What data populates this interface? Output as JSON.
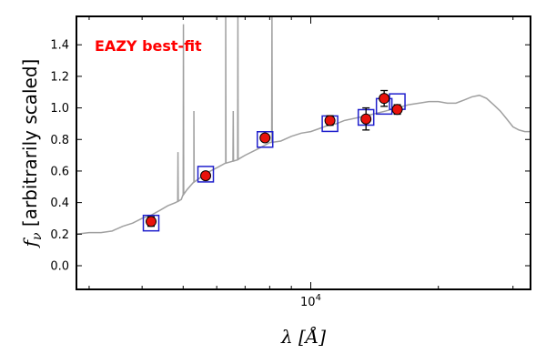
{
  "chart_data": {
    "type": "line",
    "ylabel": "f_ν [arbitrarily scaled]",
    "ylabel_symbol": "f",
    "ylabel_sub": "ν",
    "ylabel_text": " [arbitrarily scaled]",
    "xlabel": "λ [Å]",
    "xlabel_symbol": "λ",
    "xlabel_text": " [Å]",
    "xscale": "log",
    "xlim": [
      2800,
      33000
    ],
    "ylim": [
      -0.15,
      1.58
    ],
    "grid": false,
    "yticks": [
      {
        "value": 0.0,
        "label": "0.0"
      },
      {
        "value": 0.2,
        "label": "0.2"
      },
      {
        "value": 0.4,
        "label": "0.4"
      },
      {
        "value": 0.6,
        "label": "0.6"
      },
      {
        "value": 0.8,
        "label": "0.8"
      },
      {
        "value": 1.0,
        "label": "1.0"
      },
      {
        "value": 1.2,
        "label": "1.2"
      },
      {
        "value": 1.4,
        "label": "1.4"
      }
    ],
    "xtick_major": {
      "value": 10000,
      "label_base": "10",
      "label_exp": "4"
    },
    "annotation": {
      "text": "EAZY best-fit",
      "color": "#ff0000"
    },
    "colors": {
      "model": "#a0a0a0",
      "model_photometry": "#1f1fcc",
      "observed": "#e8120c",
      "errorbar": "#000000"
    },
    "series": [
      {
        "kind": "model-sed",
        "x": [
          2800,
          3000,
          3200,
          3400,
          3600,
          3800,
          4000,
          4200,
          4400,
          4600,
          4800,
          4950,
          5000,
          5100,
          5300,
          5500,
          5800,
          6000,
          6300,
          6500,
          6700,
          6800,
          7000,
          7500,
          8000,
          8500,
          9000,
          9500,
          10000,
          10500,
          11000,
          11500,
          12000,
          13000,
          14000,
          15000,
          16000,
          17000,
          18000,
          19000,
          20000,
          21000,
          22000,
          23000,
          24000,
          25000,
          26000,
          27000,
          28000,
          29000,
          30000,
          31000,
          32000,
          33000
        ],
        "y": [
          0.2,
          0.21,
          0.21,
          0.22,
          0.25,
          0.27,
          0.3,
          0.32,
          0.35,
          0.38,
          0.4,
          0.42,
          0.45,
          0.48,
          0.53,
          0.56,
          0.6,
          0.62,
          0.65,
          0.66,
          0.67,
          0.68,
          0.7,
          0.74,
          0.78,
          0.79,
          0.82,
          0.84,
          0.85,
          0.87,
          0.89,
          0.9,
          0.92,
          0.94,
          0.96,
          0.98,
          1.0,
          1.02,
          1.03,
          1.04,
          1.04,
          1.03,
          1.03,
          1.05,
          1.07,
          1.08,
          1.06,
          1.02,
          0.98,
          0.93,
          0.88,
          0.86,
          0.85,
          0.85
        ],
        "emission_lines": [
          {
            "x": 4861,
            "peak": 0.72
          },
          {
            "x": 5007,
            "peak": 1.53
          },
          {
            "x": 5300,
            "peak": 0.98
          },
          {
            "x": 6300,
            "peak": 1.58
          },
          {
            "x": 6563,
            "peak": 0.98
          },
          {
            "x": 6731,
            "peak": 1.58
          },
          {
            "x": 8100,
            "peak": 1.58
          }
        ]
      },
      {
        "kind": "model-photometry",
        "x": [
          4200,
          5650,
          7800,
          11100,
          13500,
          14900,
          16000
        ],
        "y": [
          0.27,
          0.58,
          0.8,
          0.9,
          0.94,
          1.01,
          1.04
        ]
      },
      {
        "kind": "observed",
        "x": [
          4200,
          5650,
          7800,
          11100,
          13500,
          14900,
          16000
        ],
        "y": [
          0.28,
          0.57,
          0.81,
          0.92,
          0.93,
          1.06,
          0.99
        ],
        "yerr": [
          0.03,
          0.02,
          0.02,
          0.03,
          0.07,
          0.05,
          0.03
        ]
      }
    ]
  }
}
